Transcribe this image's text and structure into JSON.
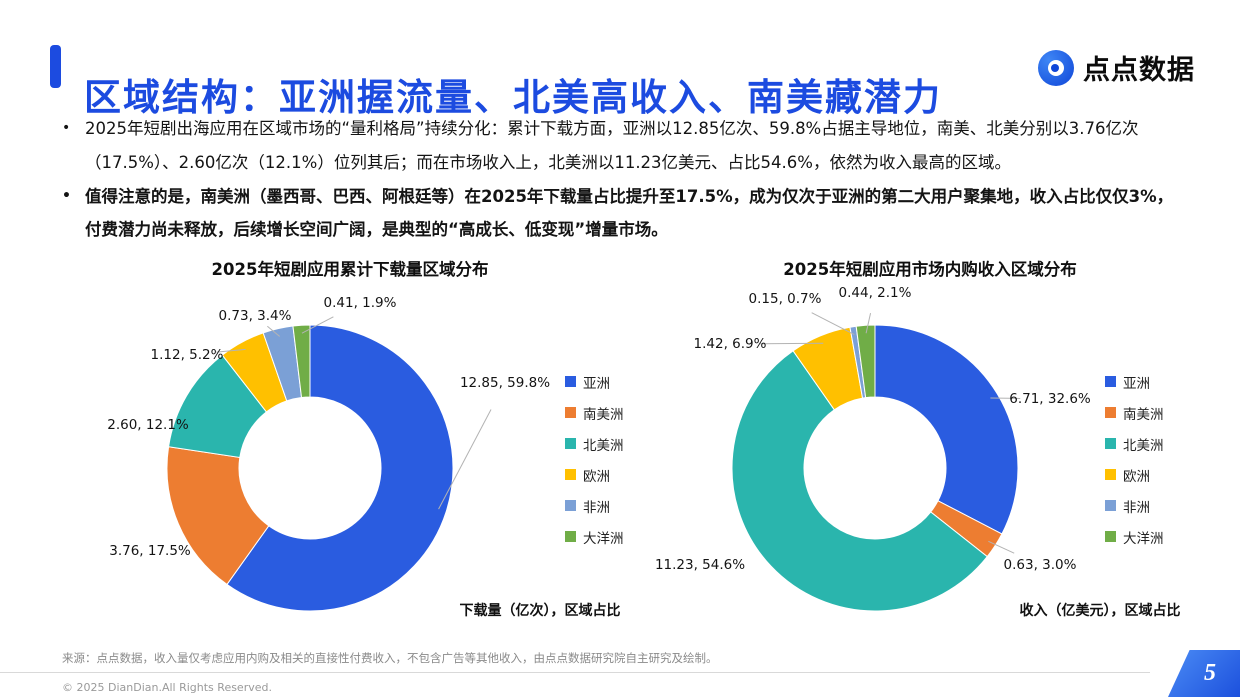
{
  "colors": {
    "accent_blue": "#1c4be0",
    "badge_blue": "#2d68e8",
    "palette": [
      "#2a5ce0",
      "#ed7d31",
      "#2ab5ad",
      "#ffc000",
      "#7ba0d6",
      "#70ad47"
    ]
  },
  "header": {
    "title": "区域结构：亚洲握流量、北美高收入、南美藏潜力",
    "logo_text": "点点数据"
  },
  "bullets": [
    {
      "text": "2025年短剧出海应用在区域市场的“量利格局”持续分化：累计下载方面，亚洲以12.85亿次、59.8%占据主导地位，南美、北美分别以3.76亿次（17.5%）、2.60亿次（12.1%）位列其后；而在市场收入上，北美洲以11.23亿美元、占比54.6%，依然为收入最高的区域。",
      "bold": false
    },
    {
      "text": "值得注意的是，南美洲（墨西哥、巴西、阿根廷等）在2025年下载量占比提升至17.5%，成为仅次于亚洲的第二大用户聚集地，收入占比仅仅3%，付费潜力尚未释放，后续增长空间广阔，是典型的“高成长、低变现”增量市场。",
      "bold": true
    }
  ],
  "chart_data": [
    {
      "type": "pie",
      "donut": true,
      "title": "2025年短剧应用累计下载量区域分布",
      "unit_caption": "下载量（亿次），区域占比",
      "legend_position": "right",
      "categories": [
        "亚洲",
        "南美洲",
        "北美洲",
        "欧洲",
        "非洲",
        "大洋洲"
      ],
      "values": [
        12.85,
        3.76,
        2.6,
        1.12,
        0.73,
        0.41
      ],
      "percents": [
        59.8,
        17.5,
        12.1,
        5.2,
        3.4,
        1.9
      ],
      "colors": [
        "#2a5ce0",
        "#ed7d31",
        "#2ab5ad",
        "#ffc000",
        "#7ba0d6",
        "#70ad47"
      ]
    },
    {
      "type": "pie",
      "donut": true,
      "title": "2025年短剧应用市场内购收入区域分布",
      "unit_caption": "收入（亿美元），区域占比",
      "legend_position": "right",
      "categories": [
        "亚洲",
        "南美洲",
        "北美洲",
        "欧洲",
        "非洲",
        "大洋洲"
      ],
      "values": [
        6.71,
        0.63,
        11.23,
        1.42,
        0.15,
        0.44
      ],
      "percents": [
        32.6,
        3.0,
        54.6,
        6.9,
        0.7,
        2.1
      ],
      "colors": [
        "#2a5ce0",
        "#ed7d31",
        "#2ab5ad",
        "#ffc000",
        "#7ba0d6",
        "#70ad47"
      ]
    }
  ],
  "footer": {
    "source": "来源：点点数据，收入量仅考虑应用内购及相关的直接性付费收入，不包含广告等其他收入，由点点数据研究院自主研究及绘制。",
    "copyright": "© 2025 DianDian.All Rights Reserved.",
    "page_number": "5"
  }
}
